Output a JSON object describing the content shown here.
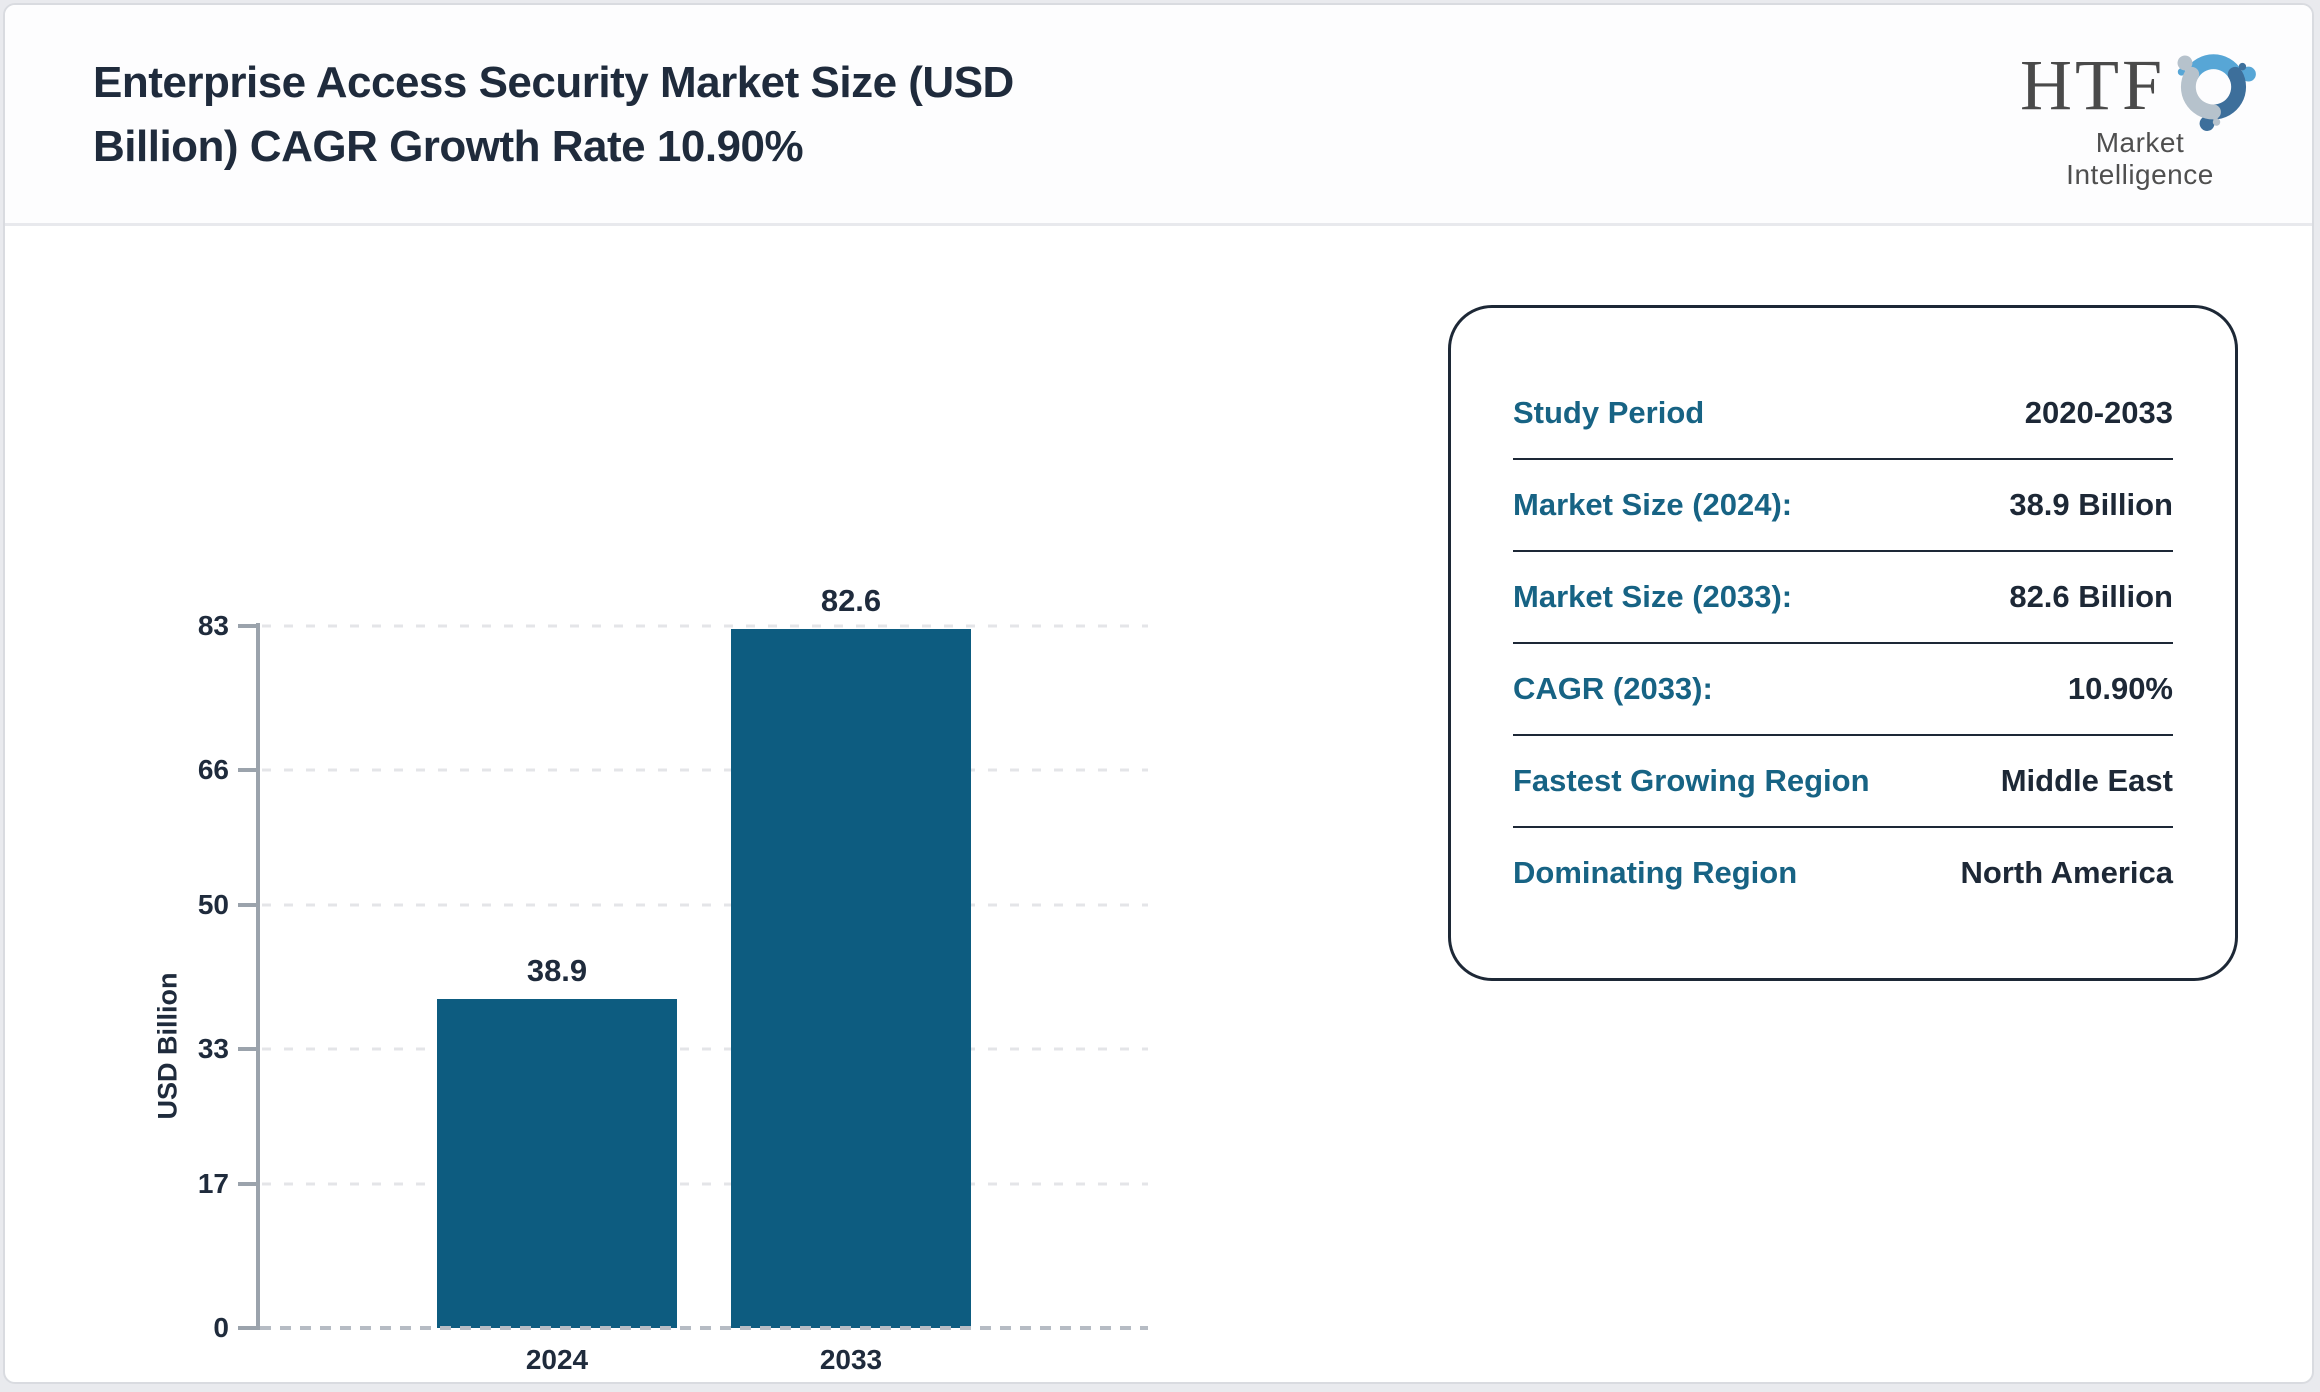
{
  "header": {
    "title": "Enterprise Access Security Market Size (USD Billion) CAGR Growth Rate 10.90%",
    "title_line1": "Enterprise Access Security Market Size (USD",
    "title_line2": "Billion) CAGR Growth Rate 10.90%",
    "logo": {
      "text": "HTF",
      "subtext": "Market Intelligence"
    }
  },
  "chart_data": {
    "type": "bar",
    "categories": [
      "2024",
      "2033"
    ],
    "values": [
      38.9,
      82.6
    ],
    "value_labels": [
      "38.9",
      "82.6"
    ],
    "title": "Enterprise Access Security Market Size (USD Billion) CAGR Growth Rate 10.90%",
    "xlabel": "",
    "ylabel": "USD Billion",
    "ylim": [
      0,
      83
    ],
    "yticks": [
      0,
      17,
      33,
      50,
      66,
      83
    ],
    "grid": "horizontal-dashed",
    "legend": "none",
    "bar_color": "#0d5c80"
  },
  "info_card": {
    "rows": [
      {
        "label": "Study Period",
        "value": "2020-2033"
      },
      {
        "label": "Market Size (2024):",
        "value": "38.9 Billion"
      },
      {
        "label": "Market Size (2033):",
        "value": "82.6 Billion"
      },
      {
        "label": "CAGR (2033):",
        "value": "10.90%"
      },
      {
        "label": "Fastest Growing Region",
        "value": "Middle East"
      },
      {
        "label": "Dominating Region",
        "value": "North America"
      }
    ]
  },
  "colors": {
    "title_text": "#1f2b3c",
    "bar": "#0d5c80",
    "label_teal": "#176384",
    "value_navy": "#1d2836",
    "axis_gray": "#9ba3ac",
    "gridline": "#e4e5e8",
    "baseline": "#b6bcc4",
    "card_border": "#1d2836",
    "page_border": "#d9dbe0",
    "page_background": "#e9eaee",
    "logo_blue": "#57a6d6",
    "logo_dark_blue": "#3d6f9b",
    "logo_gray": "#b6c2cc"
  }
}
